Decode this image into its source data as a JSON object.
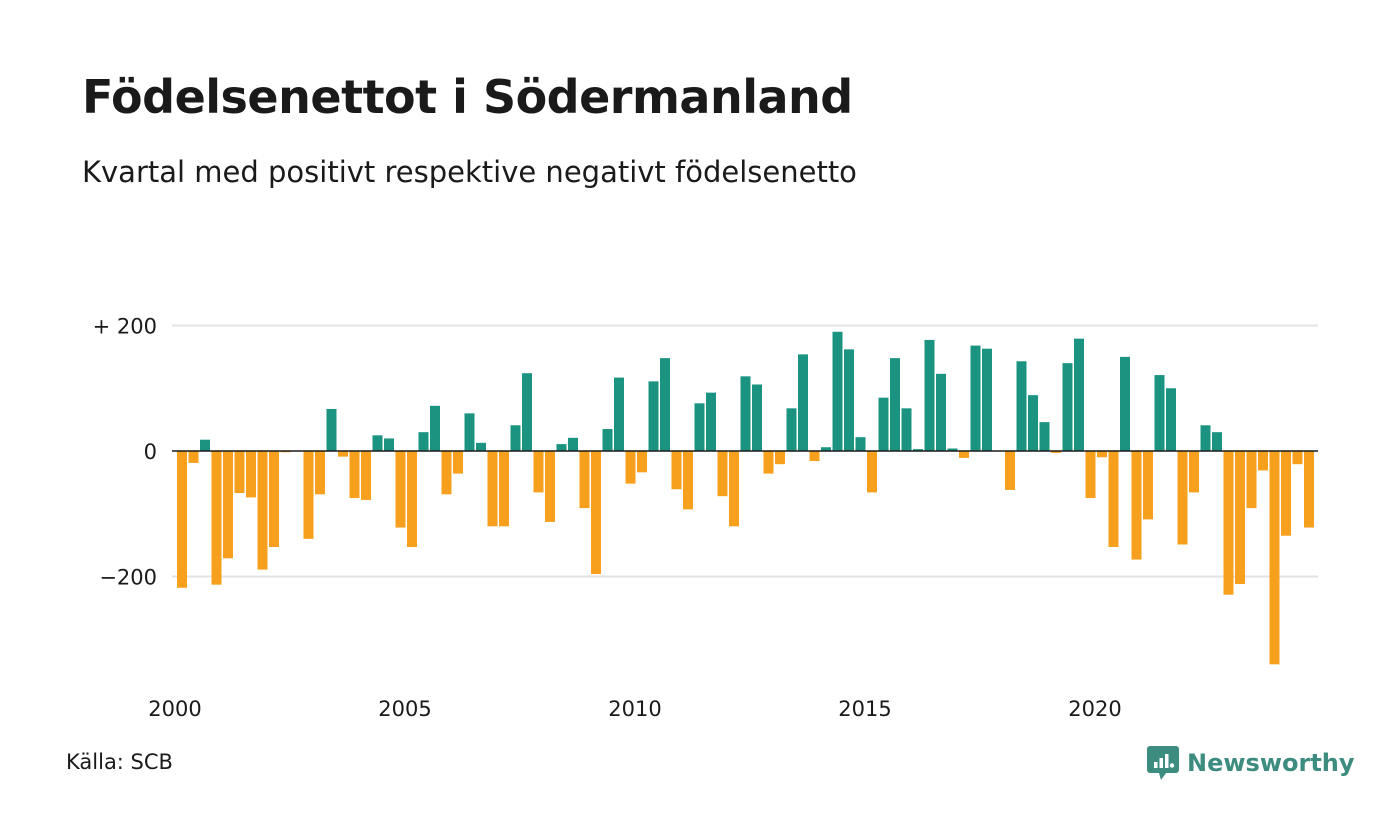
{
  "title": "Födelsenettot i Södermanland",
  "subtitle": "Kvartal med positivt respektive negativt födelsenetto",
  "source": "Källa: SCB",
  "brand": "Newsworthy",
  "colors": {
    "positive": "#1a9481",
    "negative": "#f7a01d",
    "grid": "#e3e3e3",
    "brand": "#3c8c80"
  },
  "chart_data": {
    "type": "bar",
    "title": "Födelsenettot i Södermanland",
    "subtitle": "Kvartal med positivt respektive negativt födelsenetto",
    "xlabel": "",
    "ylabel": "",
    "ylim": [
      -350,
      260
    ],
    "grid": true,
    "yticks": [
      {
        "value": 200,
        "label": "+ 200"
      },
      {
        "value": 0,
        "label": "0"
      },
      {
        "value": -200,
        "label": "−200"
      }
    ],
    "xticks": [
      {
        "value": 2000,
        "label": "2000"
      },
      {
        "value": 2005,
        "label": "2005"
      },
      {
        "value": 2010,
        "label": "2010"
      },
      {
        "value": 2015,
        "label": "2015"
      },
      {
        "value": 2020,
        "label": "2020"
      }
    ],
    "start": "2000 Q1",
    "x": [
      "2000 Q1",
      "2000 Q2",
      "2000 Q3",
      "2000 Q4",
      "2001 Q1",
      "2001 Q2",
      "2001 Q3",
      "2001 Q4",
      "2002 Q1",
      "2002 Q2",
      "2002 Q3",
      "2002 Q4",
      "2003 Q1",
      "2003 Q2",
      "2003 Q3",
      "2003 Q4",
      "2004 Q1",
      "2004 Q2",
      "2004 Q3",
      "2004 Q4",
      "2005 Q1",
      "2005 Q2",
      "2005 Q3",
      "2005 Q4",
      "2006 Q1",
      "2006 Q2",
      "2006 Q3",
      "2006 Q4",
      "2007 Q1",
      "2007 Q2",
      "2007 Q3",
      "2007 Q4",
      "2008 Q1",
      "2008 Q2",
      "2008 Q3",
      "2008 Q4",
      "2009 Q1",
      "2009 Q2",
      "2009 Q3",
      "2009 Q4",
      "2010 Q1",
      "2010 Q2",
      "2010 Q3",
      "2010 Q4",
      "2011 Q1",
      "2011 Q2",
      "2011 Q3",
      "2011 Q4",
      "2012 Q1",
      "2012 Q2",
      "2012 Q3",
      "2012 Q4",
      "2013 Q1",
      "2013 Q2",
      "2013 Q3",
      "2013 Q4",
      "2014 Q1",
      "2014 Q2",
      "2014 Q3",
      "2014 Q4",
      "2015 Q1",
      "2015 Q2",
      "2015 Q3",
      "2015 Q4",
      "2016 Q1",
      "2016 Q2",
      "2016 Q3",
      "2016 Q4",
      "2017 Q1",
      "2017 Q2",
      "2017 Q3",
      "2017 Q4",
      "2018 Q1",
      "2018 Q2",
      "2018 Q3",
      "2018 Q4",
      "2019 Q1",
      "2019 Q2",
      "2019 Q3",
      "2019 Q4",
      "2020 Q1",
      "2020 Q2",
      "2020 Q3",
      "2020 Q4",
      "2021 Q1",
      "2021 Q2",
      "2021 Q3",
      "2021 Q4",
      "2022 Q1",
      "2022 Q2",
      "2022 Q3",
      "2022 Q4",
      "2023 Q1",
      "2023 Q2",
      "2023 Q3",
      "2023 Q4",
      "2024 Q1",
      "2024 Q2",
      "2024 Q3",
      "2024 Q4"
    ],
    "values": [
      -218,
      -19,
      18,
      -213,
      -171,
      -67,
      -74,
      -189,
      -153,
      -2,
      0,
      -140,
      -69,
      67,
      -9,
      -75,
      -78,
      25,
      20,
      -122,
      -153,
      30,
      72,
      -69,
      -36,
      60,
      13,
      -120,
      -120,
      41,
      124,
      -66,
      -113,
      11,
      21,
      -91,
      -196,
      35,
      117,
      -52,
      -34,
      111,
      148,
      -61,
      -93,
      76,
      93,
      -72,
      -120,
      119,
      106,
      -36,
      -21,
      68,
      154,
      -16,
      6,
      190,
      162,
      22,
      -66,
      85,
      148,
      68,
      3,
      177,
      123,
      4,
      -11,
      168,
      163,
      0,
      -62,
      143,
      89,
      46,
      -3,
      140,
      179,
      -75,
      -10,
      -153,
      150,
      -173,
      -109,
      121,
      100,
      -149,
      -66,
      41,
      30,
      -229,
      -212,
      -91,
      -31,
      -340,
      -135,
      -21,
      -122,
      0
    ]
  }
}
